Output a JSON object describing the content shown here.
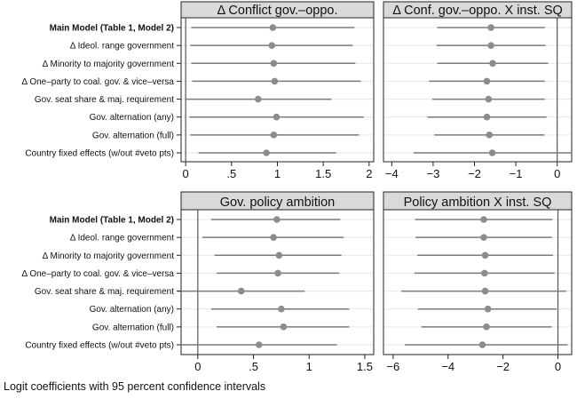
{
  "caption": "Logit coefficients with 95 percent confidence intervals",
  "chart_data": [
    {
      "type": "scatter",
      "subtype": "coefficient-plot",
      "title": "Δ Conflict gov.–oppo.",
      "xlim": [
        -0.05,
        2.05
      ],
      "xticks": [
        0,
        0.5,
        1,
        1.5,
        2
      ],
      "xtick_labels": [
        "0",
        ".5",
        "1",
        "1.5",
        "2"
      ],
      "reference_line": 0,
      "categories": [
        "Main Model (Table 1, Model 2)",
        "Δ Ideol. range government",
        "Δ Minority to majority government",
        "Δ One–party to coal. gov. & vice–versa",
        "Gov. seat share & maj. requirement",
        "Gov. alternation (any)",
        "Gov. alternation (full)",
        "Country fixed effects (w/out #veto pts)"
      ],
      "estimates": [
        0.95,
        0.94,
        0.96,
        0.97,
        0.79,
        0.99,
        0.96,
        0.88
      ],
      "ci_low": [
        0.06,
        0.05,
        0.06,
        0.07,
        0.0,
        0.04,
        0.05,
        0.14
      ],
      "ci_high": [
        1.84,
        1.82,
        1.85,
        1.91,
        1.59,
        1.94,
        1.89,
        1.64
      ]
    },
    {
      "type": "scatter",
      "subtype": "coefficient-plot",
      "title": "Δ Conf. gov.–oppo. X inst. SQ",
      "xlim": [
        -4.2,
        0.35
      ],
      "xticks": [
        -4,
        -3,
        -2,
        -1,
        0
      ],
      "xtick_labels": [
        "−4",
        "−3",
        "−2",
        "−1",
        "0"
      ],
      "reference_line": 0,
      "categories": [
        "Main Model (Table 1, Model 2)",
        "Δ Ideol. range government",
        "Δ Minority to majority government",
        "Δ One–party to coal. gov. & vice–versa",
        "Gov. seat share & maj. requirement",
        "Gov. alternation (any)",
        "Gov. alternation (full)",
        "Country fixed effects (w/out #veto pts)"
      ],
      "estimates": [
        -1.6,
        -1.6,
        -1.56,
        -1.7,
        -1.66,
        -1.7,
        -1.64,
        -1.57
      ],
      "ci_low": [
        -2.9,
        -2.92,
        -2.9,
        -3.1,
        -3.02,
        -3.14,
        -2.97,
        -3.47
      ],
      "ci_high": [
        -0.3,
        -0.28,
        -0.22,
        -0.3,
        -0.3,
        -0.26,
        -0.31,
        0.35
      ]
    },
    {
      "type": "scatter",
      "subtype": "coefficient-plot",
      "title": "Gov. policy ambition",
      "xlim": [
        -0.15,
        1.58
      ],
      "xticks": [
        0,
        0.5,
        1,
        1.5
      ],
      "xtick_labels": [
        "0",
        ".5",
        "1",
        "1.5"
      ],
      "reference_line": 0,
      "categories": [
        "Main Model (Table 1, Model 2)",
        "Δ Ideol. range government",
        "Δ Minority to majority government",
        "Δ One–party to coal. gov. & vice–versa",
        "Gov. seat share & maj. requirement",
        "Gov. alternation (any)",
        "Gov. alternation (full)",
        "Country fixed effects (w/out #veto pts)"
      ],
      "estimates": [
        0.71,
        0.68,
        0.73,
        0.72,
        0.39,
        0.75,
        0.77,
        0.55
      ],
      "ci_low": [
        0.12,
        0.04,
        0.15,
        0.17,
        -0.18,
        0.12,
        0.17,
        -0.15
      ],
      "ci_high": [
        1.28,
        1.31,
        1.29,
        1.27,
        0.96,
        1.36,
        1.36,
        1.25
      ]
    },
    {
      "type": "scatter",
      "subtype": "coefficient-plot",
      "title": "Policy ambition X inst. SQ",
      "xlim": [
        -6.35,
        0.5
      ],
      "xticks": [
        -6,
        -4,
        -2,
        0
      ],
      "xtick_labels": [
        "−6",
        "−4",
        "−2",
        "0"
      ],
      "reference_line": 0,
      "categories": [
        "Main Model (Table 1, Model 2)",
        "Δ Ideol. range government",
        "Δ Minority to majority government",
        "Δ One–party to coal. gov. & vice–versa",
        "Gov. seat share & maj. requirement",
        "Gov. alternation (any)",
        "Gov. alternation (full)",
        "Country fixed effects (w/out #veto pts)"
      ],
      "estimates": [
        -2.7,
        -2.7,
        -2.65,
        -2.67,
        -2.65,
        -2.55,
        -2.6,
        -2.75
      ],
      "ci_low": [
        -5.2,
        -5.18,
        -5.12,
        -5.22,
        -5.7,
        -5.1,
        -4.97,
        -5.57
      ],
      "ci_high": [
        -0.2,
        -0.22,
        -0.18,
        -0.12,
        0.3,
        -0.05,
        -0.23,
        0.35
      ]
    }
  ]
}
